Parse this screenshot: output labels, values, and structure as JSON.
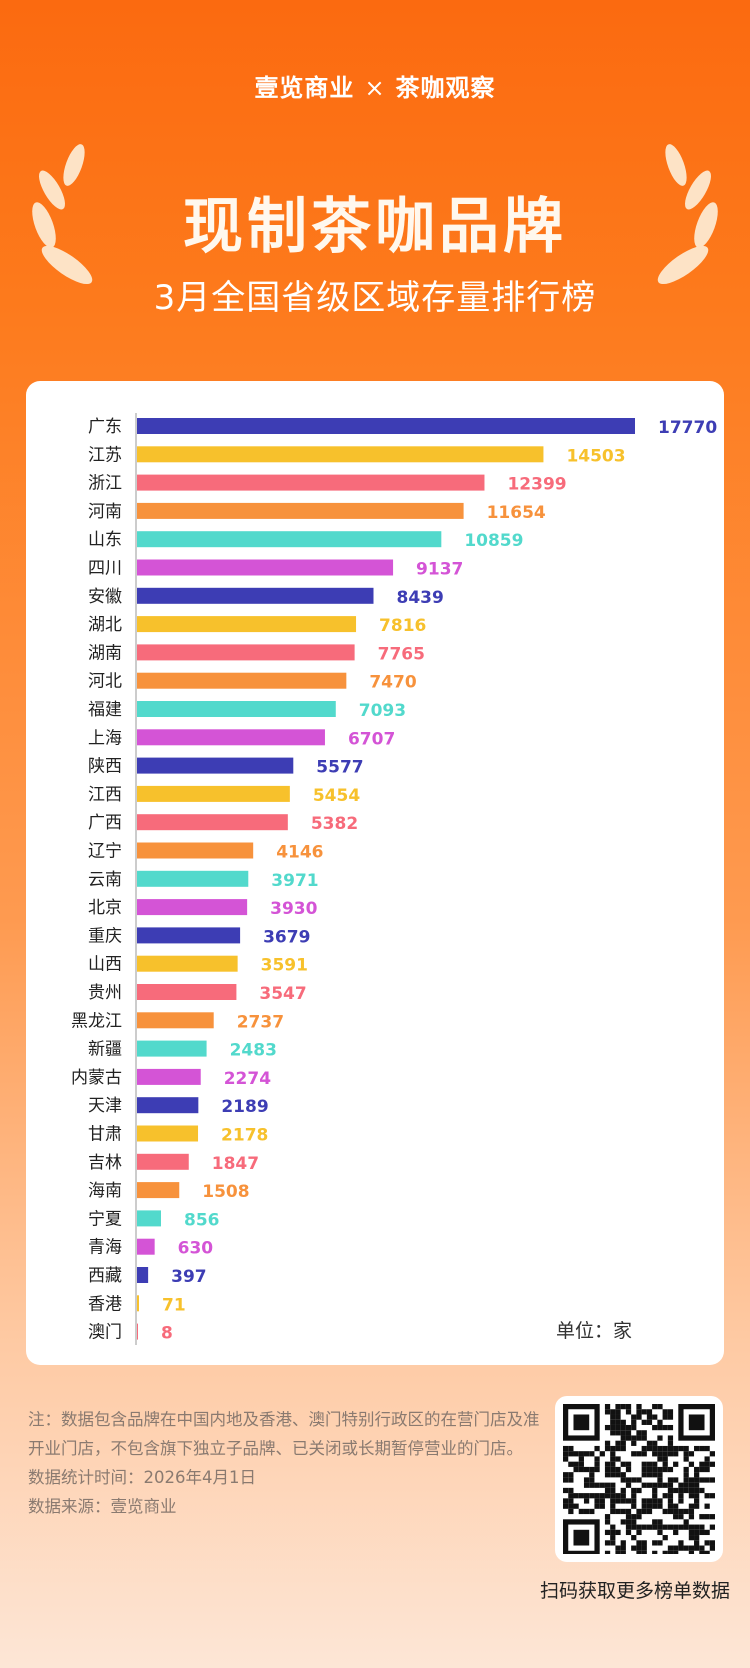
{
  "header": {
    "brand_left": "壹览商业",
    "brand_sep": "×",
    "brand_right": "茶咖观察",
    "title": "现制茶咖品牌",
    "subtitle": "3月全国省级区域存量排行榜"
  },
  "colors": [
    "#3d3db4",
    "#f7c12c",
    "#f76b7b",
    "#f7923c",
    "#52d9cc",
    "#d454d6"
  ],
  "chart_data": {
    "type": "bar",
    "orientation": "horizontal",
    "unit_label": "单位：家",
    "categories": [
      "广东",
      "江苏",
      "浙江",
      "河南",
      "山东",
      "四川",
      "安徽",
      "湖北",
      "湖南",
      "河北",
      "福建",
      "上海",
      "陕西",
      "江西",
      "广西",
      "辽宁",
      "云南",
      "北京",
      "重庆",
      "山西",
      "贵州",
      "黑龙江",
      "新疆",
      "内蒙古",
      "天津",
      "甘肃",
      "吉林",
      "海南",
      "宁夏",
      "青海",
      "西藏",
      "香港",
      "澳门"
    ],
    "values": [
      17770,
      14503,
      12399,
      11654,
      10859,
      9137,
      8439,
      7816,
      7765,
      7470,
      7093,
      6707,
      5577,
      5454,
      5382,
      4146,
      3971,
      3930,
      3679,
      3591,
      3547,
      2737,
      2483,
      2274,
      2189,
      2178,
      1847,
      1508,
      856,
      630,
      397,
      71,
      8
    ],
    "xlim": [
      0,
      17770
    ],
    "grid": false,
    "legend": "none"
  },
  "footer": {
    "note": "注：数据包含品牌在中国内地及香港、澳门特别行政区的在营门店及准开业门店，不包含旗下独立子品牌、已关闭或长期暂停营业的门店。",
    "stat_time": "数据统计时间：2026年4月1日",
    "source": "数据来源：壹览商业",
    "qr_caption": "扫码获取更多榜单数据"
  }
}
